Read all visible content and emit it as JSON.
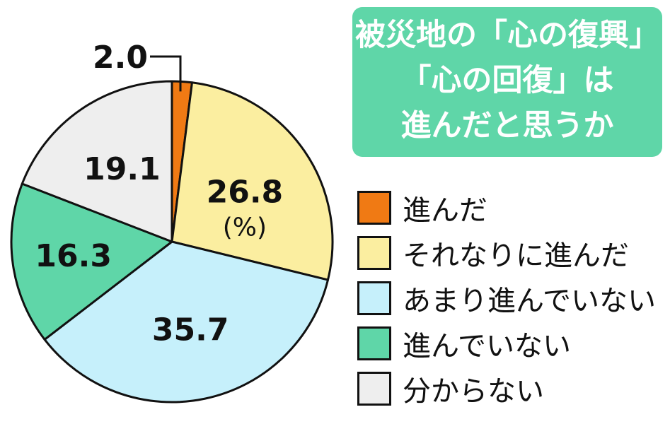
{
  "title": {
    "lines": [
      "被災地の「心の復興」",
      "「心の回復」は",
      "進んだと思うか"
    ]
  },
  "chart_data": {
    "type": "pie",
    "unit": "(%)",
    "categories": [
      "進んだ",
      "それなりに進んだ",
      "あまり進んでいない",
      "進んでいない",
      "分からない"
    ],
    "values": [
      2.0,
      26.8,
      35.7,
      16.3,
      19.1
    ],
    "value_labels": [
      "2.0",
      "26.8",
      "35.7",
      "16.3",
      "19.1"
    ],
    "colors": [
      "#f07a14",
      "#fbeea0",
      "#c6f0fb",
      "#5fd6a8",
      "#eeeeee"
    ],
    "start": "12 o'clock, clockwise"
  }
}
